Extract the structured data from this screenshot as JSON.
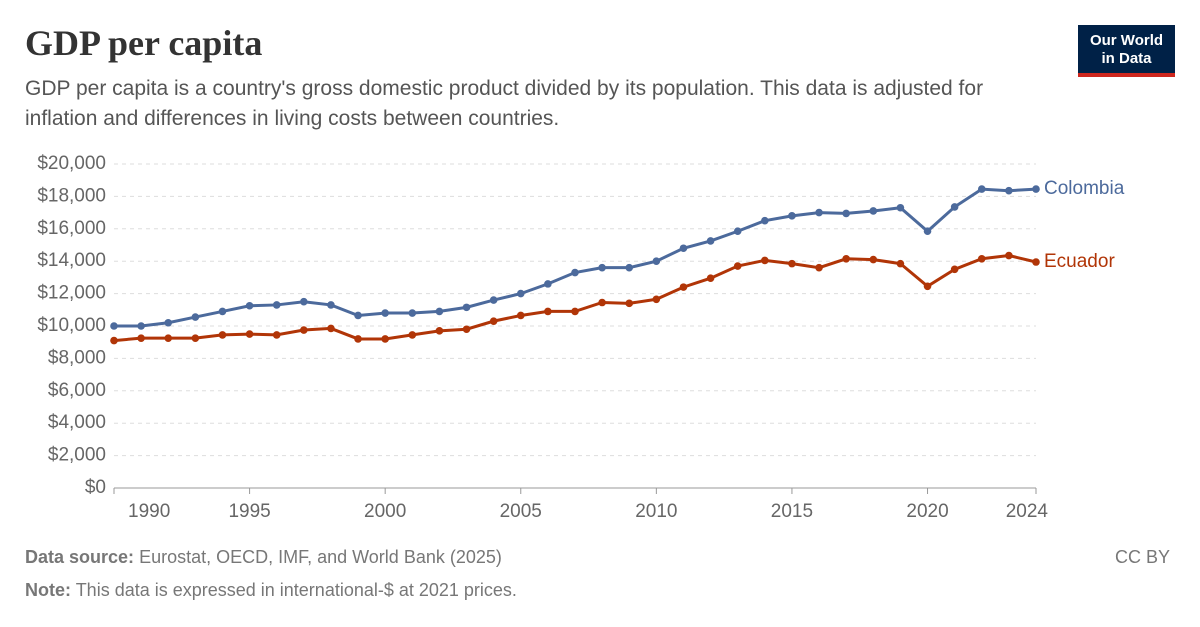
{
  "chart_data": {
    "type": "line",
    "title": "GDP per capita",
    "subtitle": "GDP per capita is a country's gross domestic product divided by its population. This data is adjusted for inflation and differences in living costs between countries.",
    "logo": [
      "Our World",
      "in Data"
    ],
    "source_label": "Data source:",
    "source": "Eurostat, OECD, IMF, and World Bank (2025)",
    "note_label": "Note:",
    "note": "This data is expressed in international-$ at 2021 prices.",
    "license": "CC BY",
    "x": [
      1990,
      1991,
      1992,
      1993,
      1994,
      1995,
      1996,
      1997,
      1998,
      1999,
      2000,
      2001,
      2002,
      2003,
      2004,
      2005,
      2006,
      2007,
      2008,
      2009,
      2010,
      2011,
      2012,
      2013,
      2014,
      2015,
      2016,
      2017,
      2018,
      2019,
      2020,
      2021,
      2022,
      2023,
      2024
    ],
    "series": [
      {
        "name": "Colombia",
        "color": "#4c6a9c",
        "values": [
          10000,
          10000,
          10200,
          10550,
          10900,
          11250,
          11300,
          11500,
          11300,
          10650,
          10800,
          10800,
          10900,
          11150,
          11600,
          12000,
          12600,
          13300,
          13600,
          13600,
          14000,
          14800,
          15250,
          15850,
          16500,
          16800,
          17000,
          16950,
          17100,
          17300,
          15850,
          17350,
          18450,
          18350,
          18450
        ]
      },
      {
        "name": "Ecuador",
        "color": "#b13507",
        "values": [
          9100,
          9250,
          9250,
          9250,
          9450,
          9500,
          9450,
          9750,
          9850,
          9200,
          9200,
          9450,
          9700,
          9800,
          10300,
          10650,
          10900,
          10900,
          11450,
          11400,
          11650,
          12400,
          12950,
          13700,
          14050,
          13850,
          13600,
          14150,
          14100,
          13850,
          12450,
          13500,
          14150,
          14350,
          13950
        ]
      }
    ],
    "xlim": [
      1990,
      2024
    ],
    "xticks": [
      1990,
      1995,
      2000,
      2005,
      2010,
      2015,
      2020,
      2024
    ],
    "ylim": [
      0,
      20000
    ],
    "yticks": [
      {
        "value": 0,
        "label": "$0"
      },
      {
        "value": 2000,
        "label": "$2,000"
      },
      {
        "value": 4000,
        "label": "$4,000"
      },
      {
        "value": 6000,
        "label": "$6,000"
      },
      {
        "value": 8000,
        "label": "$8,000"
      },
      {
        "value": 10000,
        "label": "$10,000"
      },
      {
        "value": 12000,
        "label": "$12,000"
      },
      {
        "value": 14000,
        "label": "$14,000"
      },
      {
        "value": 16000,
        "label": "$16,000"
      },
      {
        "value": 18000,
        "label": "$18,000"
      },
      {
        "value": 20000,
        "label": "$20,000"
      }
    ],
    "grid": true
  }
}
